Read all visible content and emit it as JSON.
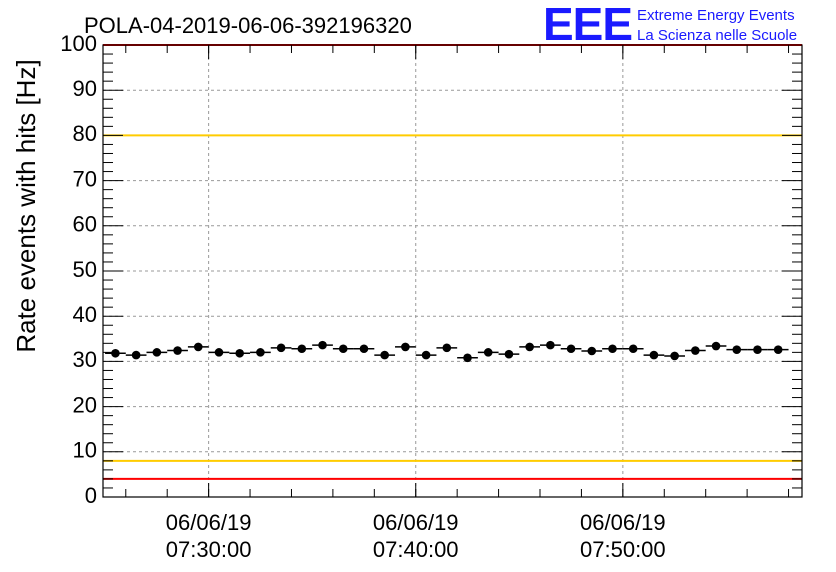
{
  "title": "POLA-04-2019-06-06-392196320",
  "logo": {
    "acronym": "EEE",
    "line1": "Extreme Energy Events",
    "line2": "La Scienza nelle Scuole"
  },
  "colors": {
    "limit_red": "#ff0000",
    "limit_yellow": "#ffcc00",
    "points": "#000000",
    "logo": "#1a1aff",
    "grid": "#999999"
  },
  "chart_data": {
    "type": "scatter",
    "title": "POLA-04-2019-06-06-392196320",
    "ylabel": "Rate events with hits [Hz]",
    "xlabel": "",
    "ylim": [
      0,
      100
    ],
    "y_ticks": [
      0,
      10,
      20,
      30,
      40,
      50,
      60,
      70,
      80,
      90,
      100
    ],
    "x_range_minutes": [
      7.55,
      7.9
    ],
    "x_ticks": [
      {
        "date": "06/06/19",
        "time": "07:30:00"
      },
      {
        "date": "06/06/19",
        "time": "07:40:00"
      },
      {
        "date": "06/06/19",
        "time": "07:50:00"
      }
    ],
    "grid": true,
    "reference_lines": [
      {
        "y": 100,
        "color": "#ff0000"
      },
      {
        "y": 80,
        "color": "#ffcc00"
      },
      {
        "y": 8,
        "color": "#ffcc00"
      },
      {
        "y": 4,
        "color": "#ff0000"
      }
    ],
    "series": [
      {
        "x": [
          "07:25:30",
          "07:26:30",
          "07:27:30",
          "07:28:30",
          "07:29:30",
          "07:30:30",
          "07:31:30",
          "07:32:30",
          "07:33:30",
          "07:34:30",
          "07:35:30",
          "07:36:30",
          "07:37:30",
          "07:38:30",
          "07:39:30",
          "07:40:30",
          "07:41:30",
          "07:42:30",
          "07:43:30",
          "07:44:30",
          "07:45:30",
          "07:46:30",
          "07:47:30",
          "07:48:30",
          "07:49:30",
          "07:50:30",
          "07:51:30",
          "07:52:30",
          "07:53:30",
          "07:54:30",
          "07:55:30",
          "07:56:30",
          "07:57:30"
        ],
        "values": [
          31.8,
          31.4,
          32.0,
          32.4,
          33.2,
          32.0,
          31.8,
          32.0,
          33.0,
          32.8,
          33.6,
          32.8,
          32.8,
          31.4,
          33.2,
          31.4,
          33.0,
          30.8,
          32.0,
          31.6,
          33.2,
          33.6,
          32.8,
          32.3,
          32.8,
          32.8,
          31.4,
          31.2,
          32.4,
          33.4,
          32.6,
          32.6,
          32.6
        ]
      }
    ]
  }
}
